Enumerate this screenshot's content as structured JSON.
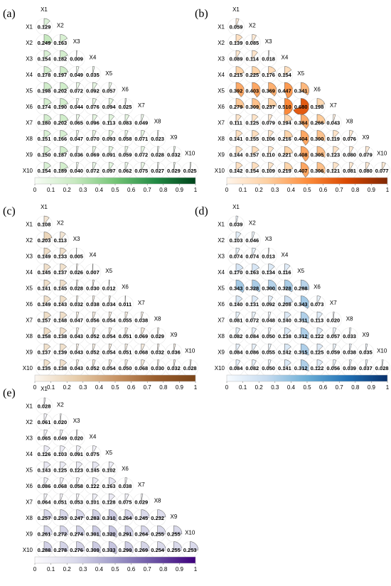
{
  "chart_data": [
    {
      "panel": "(a)",
      "type": "heatmap",
      "variables": [
        "X1",
        "X2",
        "X3",
        "X4",
        "X5",
        "X6",
        "X7",
        "X8",
        "X9",
        "X10"
      ],
      "matrix": [
        [
          0.129
        ],
        [
          0.249,
          0.163
        ],
        [
          0.154,
          0.182,
          0.009
        ],
        [
          0.178,
          0.197,
          0.049,
          0.035
        ],
        [
          0.198,
          0.202,
          0.072,
          0.092,
          0.057
        ],
        [
          0.174,
          0.19,
          0.044,
          0.076,
          0.094,
          0.025
        ],
        [
          0.18,
          0.202,
          0.065,
          0.096,
          0.113,
          0.083,
          0.049
        ],
        [
          0.151,
          0.166,
          0.047,
          0.07,
          0.093,
          0.058,
          0.071,
          0.023
        ],
        [
          0.15,
          0.187,
          0.036,
          0.069,
          0.091,
          0.059,
          0.072,
          0.028,
          0.032
        ],
        [
          0.154,
          0.189,
          0.04,
          0.072,
          0.097,
          0.062,
          0.075,
          0.027,
          0.029,
          0.025
        ]
      ],
      "colorscale": {
        "min": 0,
        "max": 1,
        "colors": [
          "#f7fcf5",
          "#c7e9c0",
          "#74c476",
          "#238b45",
          "#00441b"
        ]
      },
      "colorbar_ticks": [
        "0",
        "0.1",
        "0.2",
        "0.3",
        "0.4",
        "0.5",
        "0.6",
        "0.7",
        "0.8",
        "0.9",
        "1"
      ]
    },
    {
      "panel": "(b)",
      "type": "heatmap",
      "variables": [
        "X1",
        "X2",
        "X3",
        "X4",
        "X5",
        "X6",
        "X7",
        "X8",
        "X9",
        "X10"
      ],
      "matrix": [
        [
          0.059
        ],
        [
          0.139,
          0.085
        ],
        [
          0.089,
          0.114,
          0.018
        ],
        [
          0.215,
          0.225,
          0.176,
          0.154
        ],
        [
          0.392,
          0.403,
          0.369,
          0.447,
          0.341
        ],
        [
          0.279,
          0.309,
          0.237,
          0.51,
          0.68,
          0.198
        ],
        [
          0.111,
          0.125,
          0.079,
          0.194,
          0.384,
          0.266,
          0.043
        ],
        [
          0.141,
          0.155,
          0.106,
          0.216,
          0.404,
          0.3,
          0.119,
          0.076
        ],
        [
          0.144,
          0.157,
          0.11,
          0.221,
          0.408,
          0.305,
          0.123,
          0.08,
          0.079
        ],
        [
          0.142,
          0.154,
          0.109,
          0.219,
          0.407,
          0.306,
          0.121,
          0.081,
          0.08,
          0.077
        ]
      ],
      "colorscale": {
        "min": 0,
        "max": 1,
        "colors": [
          "#fff5eb",
          "#fdd0a2",
          "#fd8d3c",
          "#d94801",
          "#7f2704"
        ]
      },
      "colorbar_ticks": [
        "0",
        "0.1",
        "0.2",
        "0.3",
        "0.4",
        "0.5",
        "0.6",
        "0.7",
        "0.8",
        "0.9",
        "1"
      ]
    },
    {
      "panel": "(c)",
      "type": "heatmap",
      "variables": [
        "X1",
        "X2",
        "X3",
        "X4",
        "X5",
        "X6",
        "X7",
        "X8",
        "X9",
        "X10"
      ],
      "matrix": [
        [
          0.108
        ],
        [
          0.203,
          0.113
        ],
        [
          0.149,
          0.133,
          0.005
        ],
        [
          0.145,
          0.137,
          0.026,
          0.007
        ],
        [
          0.141,
          0.145,
          0.028,
          0.03,
          0.012
        ],
        [
          0.149,
          0.143,
          0.032,
          0.038,
          0.034,
          0.011
        ],
        [
          0.157,
          0.148,
          0.047,
          0.056,
          0.054,
          0.055,
          0.038
        ],
        [
          0.158,
          0.138,
          0.043,
          0.052,
          0.054,
          0.051,
          0.069,
          0.029
        ],
        [
          0.137,
          0.139,
          0.043,
          0.052,
          0.054,
          0.051,
          0.068,
          0.032,
          0.036
        ],
        [
          0.135,
          0.138,
          0.043,
          0.052,
          0.054,
          0.05,
          0.068,
          0.03,
          0.032,
          0.028
        ]
      ],
      "colorscale": {
        "min": 0,
        "max": 1,
        "colors": [
          "#fbf6f0",
          "#e8cfae",
          "#c99668",
          "#9a5e2e",
          "#7a4418"
        ]
      },
      "colorbar_ticks": [
        "0",
        "0.1",
        "0.2",
        "0.3",
        "0.4",
        "0.5",
        "0.6",
        "0.7",
        "0.8",
        "0.9",
        "1"
      ]
    },
    {
      "panel": "(d)",
      "type": "heatmap",
      "variables": [
        "X1",
        "X2",
        "X3",
        "X4",
        "X5",
        "X6",
        "X7",
        "X8",
        "X9",
        "X10"
      ],
      "matrix": [
        [
          0.039
        ],
        [
          0.103,
          0.046
        ],
        [
          0.074,
          0.074,
          0.013
        ],
        [
          0.17,
          0.163,
          0.134,
          0.116
        ],
        [
          0.343,
          0.328,
          0.3,
          0.328,
          0.288
        ],
        [
          0.14,
          0.131,
          0.092,
          0.208,
          0.343,
          0.073
        ],
        [
          0.081,
          0.072,
          0.048,
          0.14,
          0.311,
          0.113,
          0.02
        ],
        [
          0.082,
          0.084,
          0.05,
          0.138,
          0.312,
          0.122,
          0.057,
          0.033
        ],
        [
          0.084,
          0.086,
          0.055,
          0.142,
          0.315,
          0.125,
          0.059,
          0.038,
          0.035
        ],
        [
          0.084,
          0.082,
          0.05,
          0.141,
          0.312,
          0.122,
          0.056,
          0.039,
          0.037,
          0.028
        ]
      ],
      "colorscale": {
        "min": 0,
        "max": 1,
        "colors": [
          "#f7fbff",
          "#c6dbef",
          "#6baed6",
          "#2171b5",
          "#08306b"
        ]
      },
      "colorbar_ticks": [
        "0",
        "0.1",
        "0.2",
        "0.3",
        "0.4",
        "0.5",
        "0.6",
        "0.7",
        "0.8",
        "0.9",
        "1"
      ]
    },
    {
      "panel": "(e)",
      "type": "heatmap",
      "variables": [
        "X1",
        "X2",
        "X3",
        "X4",
        "X5",
        "X6",
        "X7",
        "X8",
        "X9",
        "X10"
      ],
      "matrix": [
        [
          0.028
        ],
        [
          0.061,
          0.02
        ],
        [
          0.065,
          0.049,
          0.02
        ],
        [
          0.126,
          0.103,
          0.091,
          0.075
        ],
        [
          0.143,
          0.125,
          0.123,
          0.145,
          0.102
        ],
        [
          0.086,
          0.068,
          0.058,
          0.122,
          0.163,
          0.038
        ],
        [
          0.064,
          0.051,
          0.053,
          0.101,
          0.128,
          0.075,
          0.029
        ],
        [
          0.257,
          0.253,
          0.247,
          0.283,
          0.31,
          0.264,
          0.245,
          0.232
        ],
        [
          0.261,
          0.272,
          0.274,
          0.301,
          0.32,
          0.291,
          0.264,
          0.255,
          0.255
        ],
        [
          0.288,
          0.278,
          0.276,
          0.309,
          0.333,
          0.299,
          0.269,
          0.254,
          0.255,
          0.253
        ]
      ],
      "colorscale": {
        "min": 0,
        "max": 1,
        "colors": [
          "#fcfbfd",
          "#dadaeb",
          "#9e9ac8",
          "#6a51a3",
          "#3f007d"
        ]
      },
      "colorbar_ticks": [
        "0",
        "0.1",
        "0.2",
        "0.3",
        "0.4",
        "0.5",
        "0.6",
        "0.7",
        "0.8",
        "0.9",
        "1"
      ]
    }
  ]
}
